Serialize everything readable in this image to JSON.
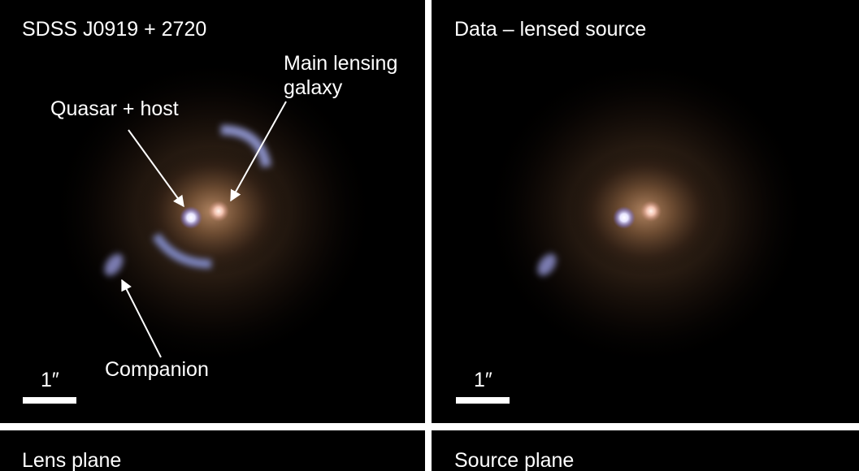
{
  "panels": [
    {
      "title": "SDSS J0919 + 2720",
      "labels": {
        "quasar": "Quasar + host",
        "lens": "Main lensing galaxy",
        "companion": "Companion"
      },
      "scale": "1″"
    },
    {
      "title": "Data – lensed source",
      "scale": "1″"
    },
    {
      "title": "Lens plane"
    },
    {
      "title": "Source plane"
    }
  ]
}
